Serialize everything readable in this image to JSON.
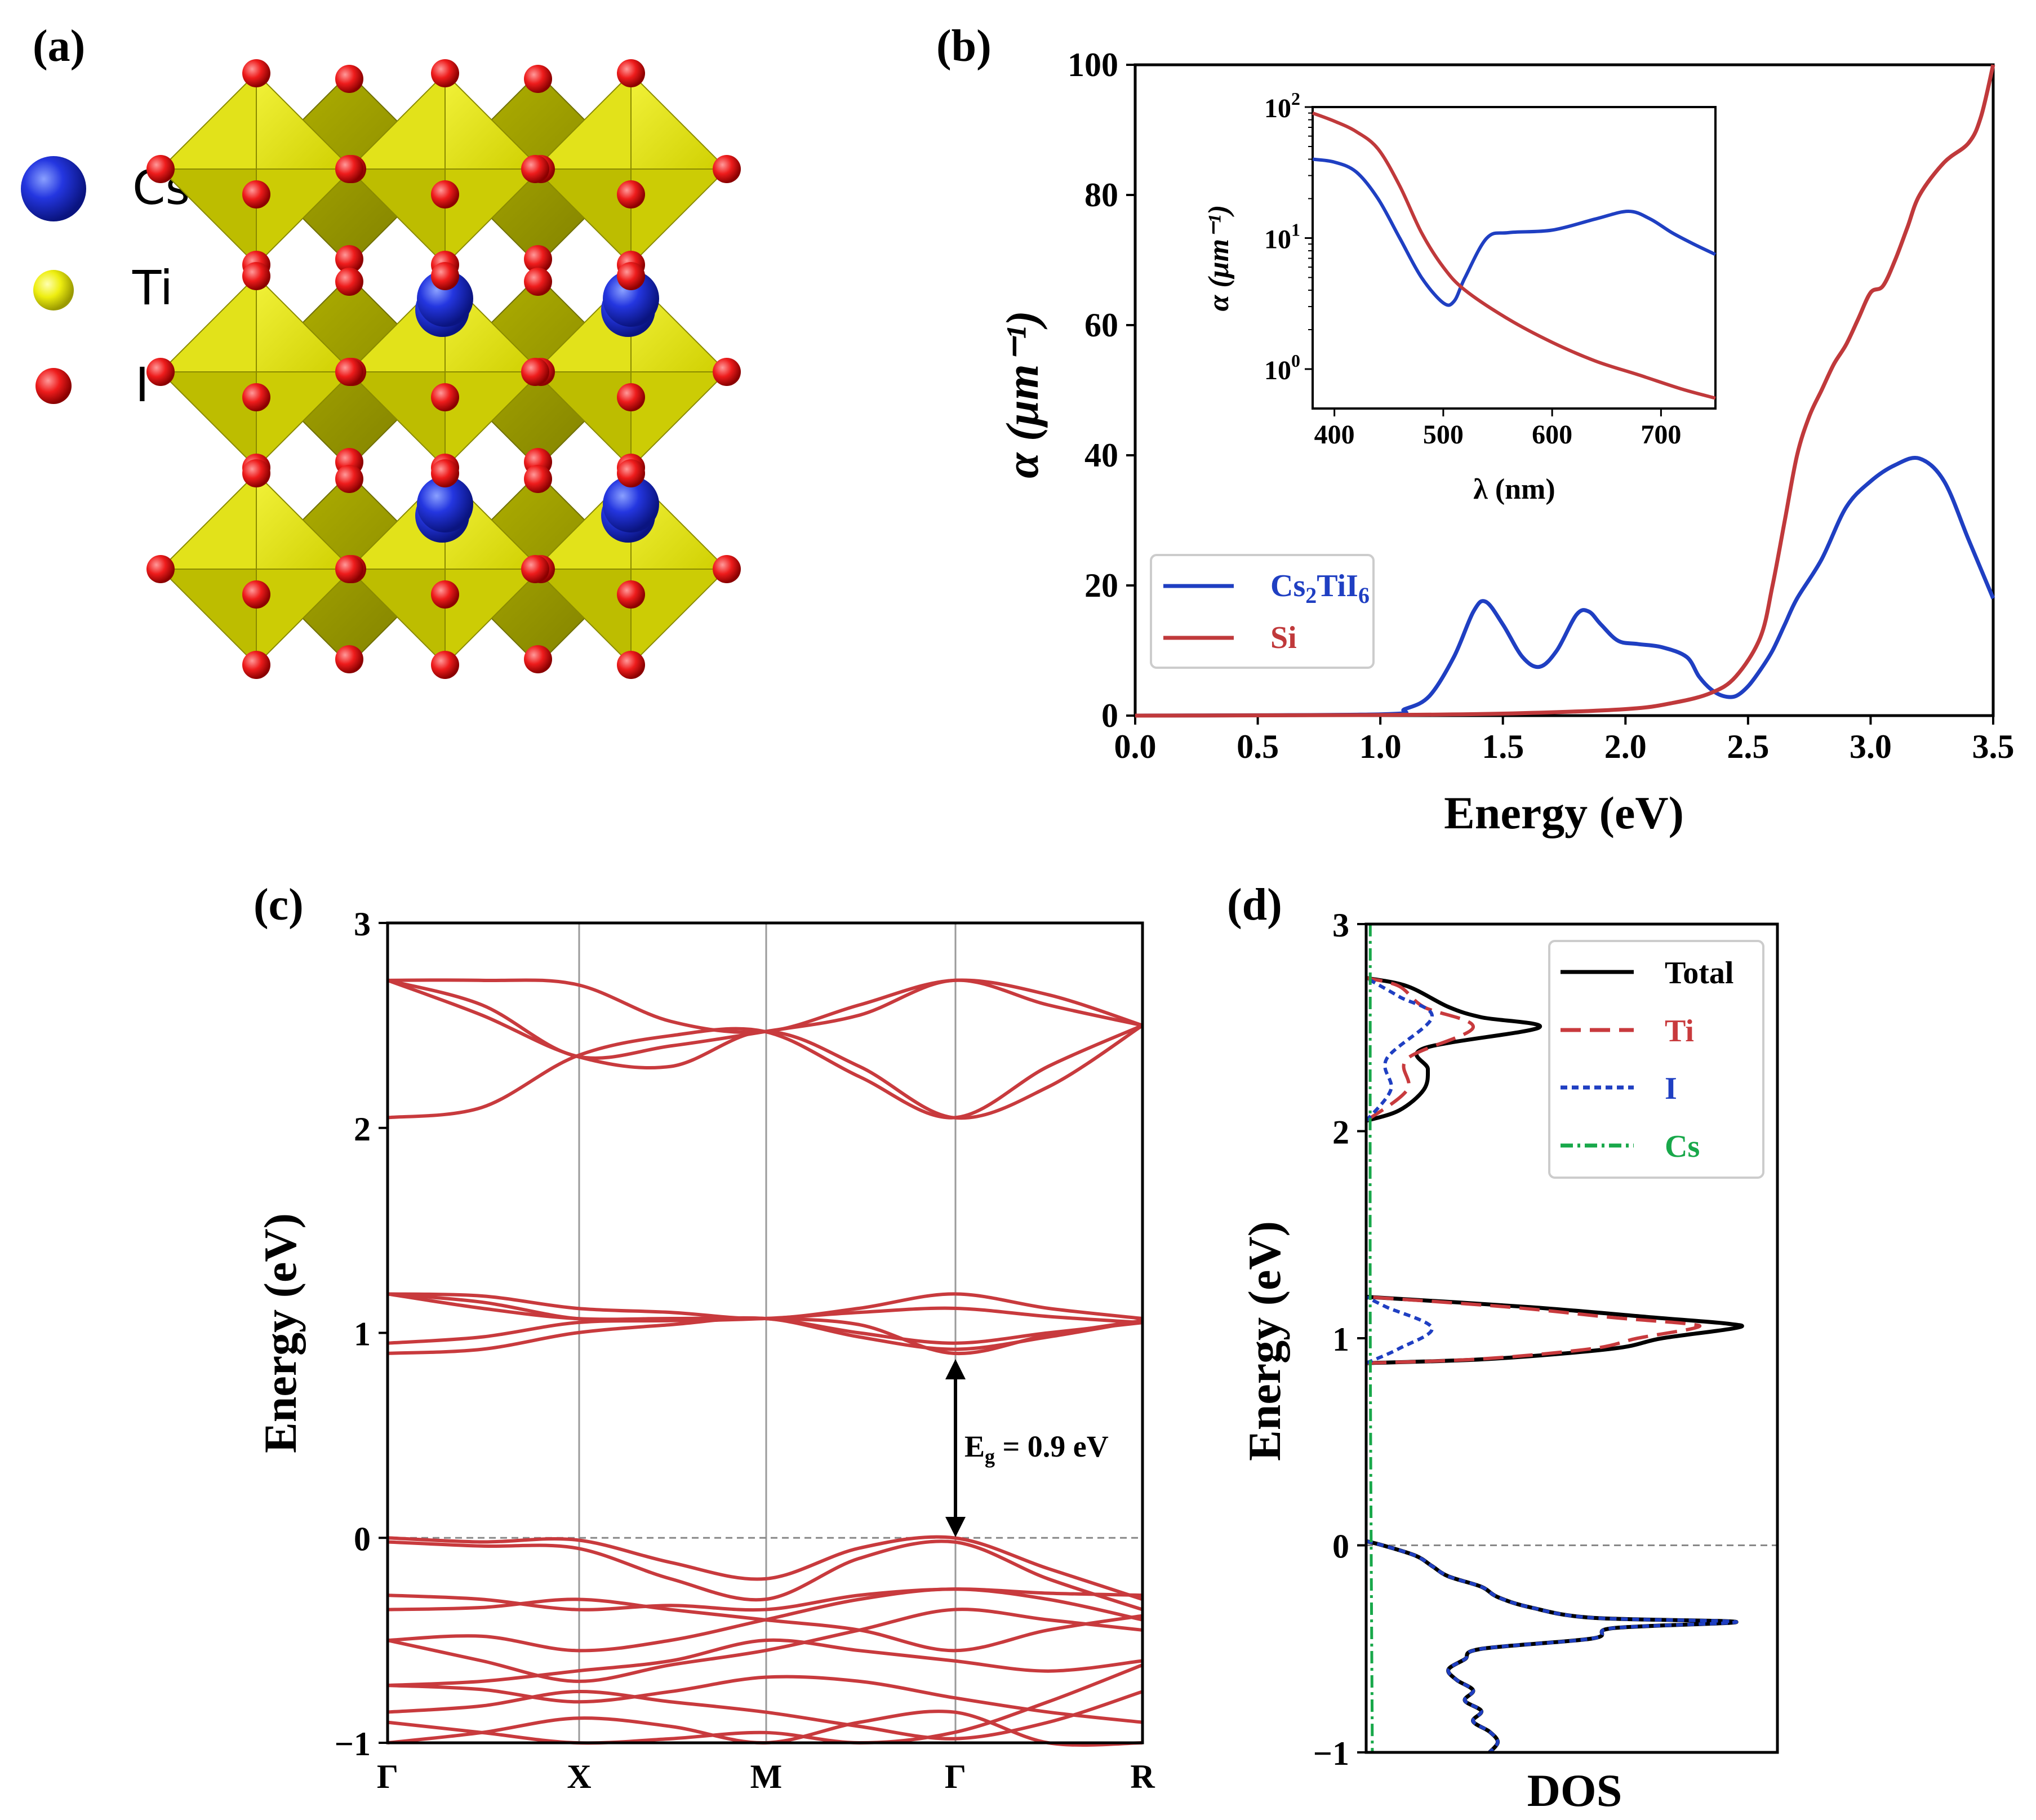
{
  "panel_a": {
    "label": "(a)",
    "legend": [
      {
        "name": "Cs",
        "color": "#1e2fd0"
      },
      {
        "name": "Ti",
        "color": "#e6e600"
      },
      {
        "name": "I",
        "color": "#e8141a"
      }
    ],
    "octahedron_color": "#d8d800",
    "octahedron_shade": "#a8a800"
  },
  "chart_data": [
    {
      "panel": "(b)",
      "type": "line",
      "xlabel": "Energy (eV)",
      "ylabel": "α (μm⁻¹)",
      "xlim": [
        0.0,
        3.5
      ],
      "ylim": [
        0,
        100
      ],
      "xticks": [
        "0.0",
        "0.5",
        "1.0",
        "1.5",
        "2.0",
        "2.5",
        "3.0",
        "3.5"
      ],
      "yticks": [
        "0",
        "20",
        "40",
        "60",
        "80",
        "100"
      ],
      "legend": [
        {
          "name": "Cs2TiI6",
          "sub": "2",
          "sub2": "6",
          "color": "#1f3fc2"
        },
        {
          "name": "Si",
          "color": "#c0393b"
        }
      ],
      "series": [
        {
          "name": "Cs2TiI6",
          "color": "#1f3fc2",
          "x": [
            0,
            1.0,
            1.1,
            1.2,
            1.3,
            1.38,
            1.43,
            1.5,
            1.58,
            1.65,
            1.72,
            1.8,
            1.85,
            1.9,
            1.97,
            2.05,
            2.15,
            2.25,
            2.3,
            2.35,
            2.4,
            2.45,
            2.5,
            2.55,
            2.6,
            2.65,
            2.7,
            2.8,
            2.9,
            3.0,
            3.1,
            3.2,
            3.3,
            3.4,
            3.5
          ],
          "y": [
            0,
            0.2,
            1,
            3,
            9,
            16,
            17.5,
            14,
            9,
            7.5,
            10,
            15.5,
            16,
            14,
            11.5,
            11,
            10.5,
            9,
            6,
            4,
            3,
            3,
            4.5,
            7,
            10,
            14,
            18,
            24,
            32,
            36,
            38.5,
            39.5,
            36,
            27,
            18
          ]
        },
        {
          "name": "Si",
          "color": "#c0393b",
          "x": [
            0,
            1.0,
            1.5,
            2.0,
            2.2,
            2.35,
            2.45,
            2.55,
            2.6,
            2.65,
            2.7,
            2.75,
            2.8,
            2.85,
            2.9,
            2.95,
            3.0,
            3.05,
            3.1,
            3.15,
            3.2,
            3.3,
            3.4,
            3.45,
            3.5
          ],
          "y": [
            0,
            0.1,
            0.3,
            1,
            2,
            3.5,
            6,
            12,
            20,
            30,
            40,
            46,
            50,
            54,
            57,
            61,
            65,
            66,
            70,
            75,
            80,
            85,
            88,
            92,
            100
          ]
        }
      ]
    },
    {
      "panel": "(b) inset",
      "type": "line",
      "scale": "log-y",
      "xlabel": "λ (nm)",
      "ylabel": "α (μm⁻¹)",
      "xlim": [
        380,
        750
      ],
      "ylim": [
        0.5,
        100
      ],
      "xticks": [
        "400",
        "500",
        "600",
        "700"
      ],
      "yticks": [
        {
          "base": "10",
          "exp": "2",
          "value": 100
        },
        {
          "base": "10",
          "exp": "1",
          "value": 10
        },
        {
          "base": "10",
          "exp": "0",
          "value": 1
        }
      ],
      "series": [
        {
          "name": "Cs2TiI6",
          "color": "#1f3fc2",
          "x": [
            380,
            400,
            420,
            440,
            460,
            480,
            500,
            510,
            520,
            540,
            560,
            600,
            640,
            670,
            690,
            710,
            730,
            750
          ],
          "y": [
            40,
            38,
            32,
            20,
            10,
            5,
            3.2,
            3.3,
            5,
            10,
            11,
            11.5,
            14,
            16,
            14,
            11,
            9,
            7.5
          ]
        },
        {
          "name": "Si",
          "color": "#c0393b",
          "x": [
            380,
            400,
            420,
            440,
            460,
            480,
            500,
            520,
            560,
            600,
            640,
            680,
            720,
            750
          ],
          "y": [
            90,
            78,
            65,
            48,
            25,
            11,
            6,
            4,
            2.4,
            1.6,
            1.15,
            0.9,
            0.7,
            0.6
          ]
        }
      ]
    },
    {
      "panel": "(c)",
      "type": "line",
      "description": "band structure",
      "ylabel": "Energy (eV)",
      "ylim": [
        -1,
        3
      ],
      "yticks": [
        "3",
        "2",
        "1",
        "0",
        "−1"
      ],
      "kpoints": [
        "Γ",
        "X",
        "M",
        "Γ",
        "R"
      ],
      "gap_label": "E",
      "gap_sub": "g",
      "gap_text": " = 0.9 eV",
      "band_gap": 0.9,
      "line_color": "#c83a3d"
    },
    {
      "panel": "(d)",
      "type": "line",
      "description": "density of states",
      "xlabel": "DOS",
      "ylabel": "Energy (eV)",
      "ylim": [
        -1,
        3
      ],
      "yticks": [
        "3",
        "2",
        "1",
        "0",
        "−1"
      ],
      "legend": [
        {
          "name": "Total",
          "color": "#000000",
          "style": "solid"
        },
        {
          "name": "Ti",
          "color": "#c83a3d",
          "style": "dashed"
        },
        {
          "name": "I",
          "color": "#1f3fc2",
          "style": "dotted"
        },
        {
          "name": "Cs",
          "color": "#18a84a",
          "style": "dashdot"
        }
      ]
    }
  ]
}
